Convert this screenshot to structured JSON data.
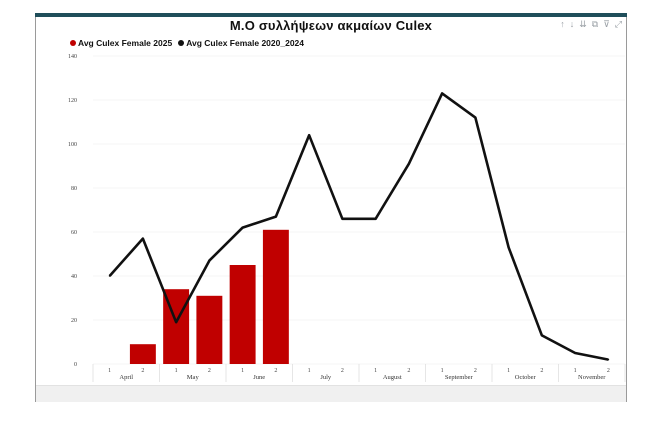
{
  "title": "Μ.Ο συλλήψεων ακμαίων Culex",
  "toolbar": {
    "icons": [
      "arrow-up-icon",
      "arrow-down-icon",
      "drill-down-icon",
      "expand-icon",
      "filter-icon",
      "focus-mode-icon"
    ],
    "glyphs": [
      "↑",
      "↓",
      "⇊",
      "⧉",
      "⊽",
      "⤢"
    ]
  },
  "legend": [
    {
      "label": "Avg Culex Female 2025",
      "color": "#c00000"
    },
    {
      "label": "Avg Culex Female 2020_2024",
      "color": "#111111"
    }
  ],
  "colors": {
    "bar": "#c00000",
    "line": "#111111",
    "grid": "#ececec"
  },
  "chart_data": {
    "type": "bar",
    "categories": [
      "April 1",
      "April 2",
      "May 1",
      "May 2",
      "June 1",
      "June 2",
      "July 1",
      "July 2",
      "August 1",
      "August 2",
      "September 1",
      "September 2",
      "October 1",
      "October 2",
      "November 1",
      "November 2"
    ],
    "x_sub_labels": [
      "1",
      "2",
      "1",
      "2",
      "1",
      "2",
      "1",
      "2",
      "1",
      "2",
      "1",
      "2",
      "1",
      "2",
      "1",
      "2"
    ],
    "x_groups": [
      "April",
      "May",
      "June",
      "July",
      "August",
      "September",
      "October",
      "November"
    ],
    "series": [
      {
        "name": "Avg Culex Female 2025",
        "type": "bar",
        "values": [
          null,
          9,
          34,
          31,
          45,
          61,
          null,
          null,
          null,
          null,
          null,
          null,
          null,
          null,
          null,
          null
        ]
      },
      {
        "name": "Avg Culex Female 2020_2024",
        "type": "line",
        "values": [
          40,
          57,
          19,
          47,
          62,
          67,
          104,
          66,
          66,
          91,
          123,
          112,
          53,
          13,
          5,
          2
        ]
      }
    ],
    "y_ticks": [
      0,
      20,
      40,
      60,
      80,
      100,
      120,
      140
    ],
    "ylim": [
      0,
      140
    ],
    "grid": true,
    "legend_position": "top-left"
  }
}
